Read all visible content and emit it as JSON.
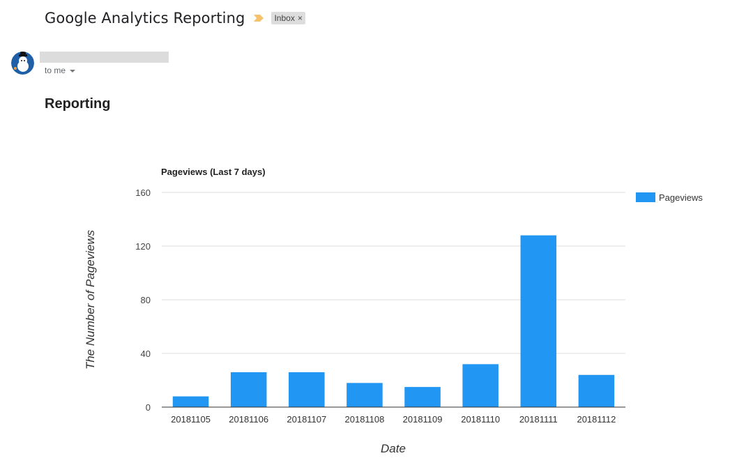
{
  "email": {
    "subject": "Google Analytics Reporting",
    "label": "Inbox",
    "label_close": "×",
    "recipient": "to me",
    "heading": "Reporting"
  },
  "colors": {
    "bar": "#2196f3",
    "importance": "#f6c26b",
    "grid": "#dddddd",
    "axis": "#333333"
  },
  "icons": {
    "importance": "importance-marker-icon",
    "label_close": "close-icon",
    "recipient_caret": "chevron-down-icon",
    "avatar": "snowman-avatar"
  },
  "chart_data": {
    "type": "bar",
    "title": "Pageviews (Last 7 days)",
    "xlabel": "Date",
    "ylabel": "The Number of Pageviews",
    "categories": [
      "20181105",
      "20181106",
      "20181107",
      "20181108",
      "20181109",
      "20181110",
      "20181111",
      "20181112"
    ],
    "series": [
      {
        "name": "Pageviews",
        "values": [
          8,
          26,
          26,
          18,
          15,
          32,
          128,
          24
        ]
      }
    ],
    "ylim": [
      0,
      160
    ],
    "yticks": [
      0,
      40,
      80,
      120,
      160
    ],
    "grid": true,
    "legend": "right"
  }
}
